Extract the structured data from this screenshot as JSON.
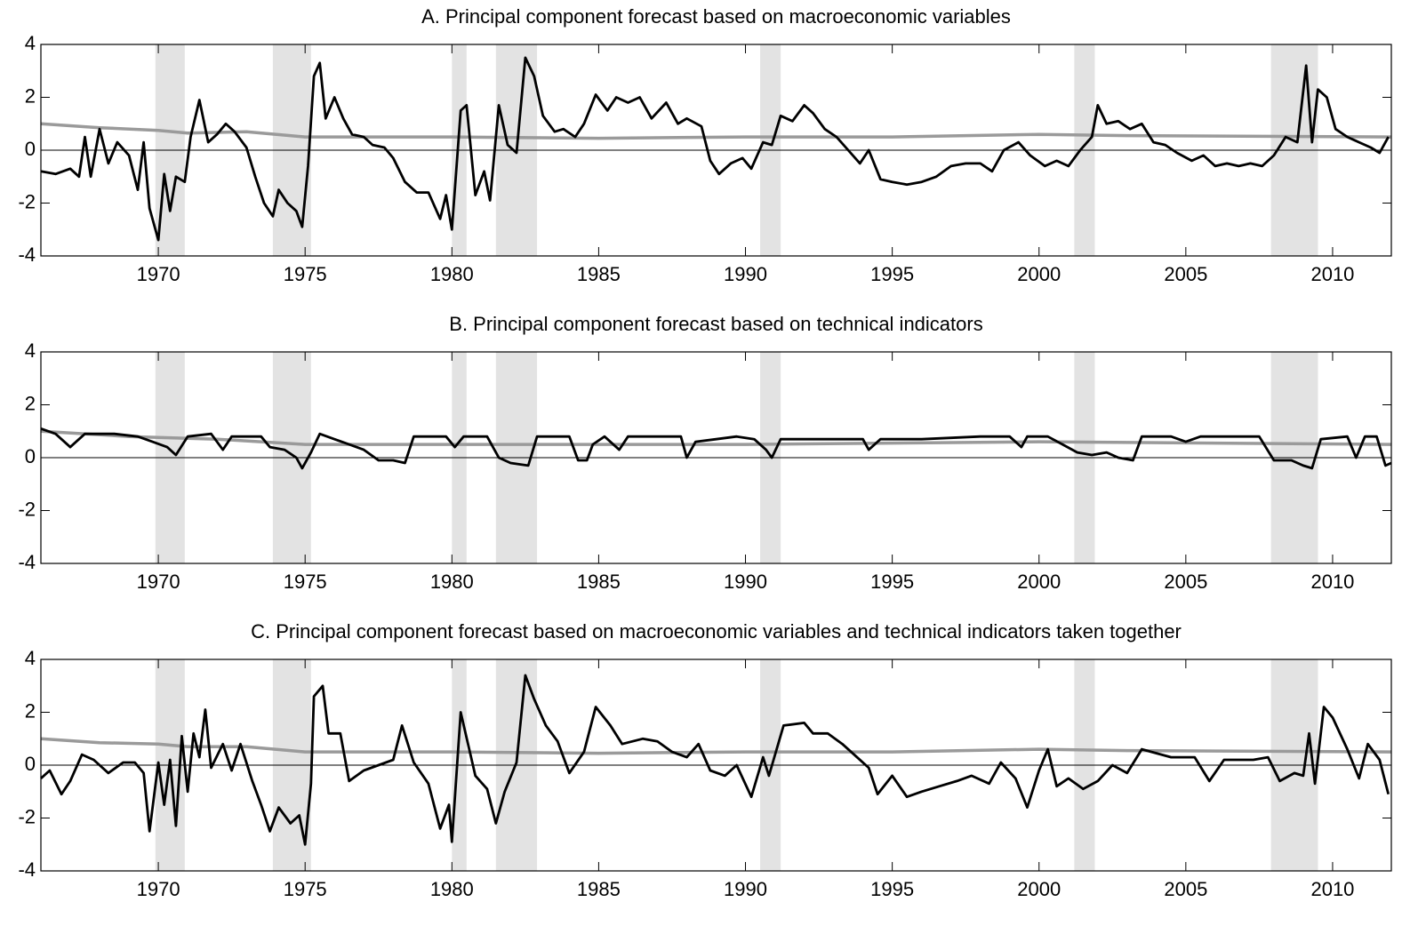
{
  "chart_data": [
    {
      "type": "line",
      "title": "A. Principal component forecast based on macroeconomic variables",
      "xlim": [
        1966,
        2012
      ],
      "ylim": [
        -4,
        4
      ],
      "xticks": [
        1970,
        1975,
        1980,
        1985,
        1990,
        1995,
        2000,
        2005,
        2010
      ],
      "yticks": [
        -4,
        -2,
        0,
        2,
        4
      ],
      "zero_line": true,
      "shade_color": "#e3e3e3",
      "recessions": [
        [
          1969.9,
          1970.9
        ],
        [
          1973.9,
          1975.2
        ],
        [
          1980.0,
          1980.5
        ],
        [
          1981.5,
          1982.9
        ],
        [
          1990.5,
          1991.2
        ],
        [
          2001.2,
          2001.9
        ],
        [
          2007.9,
          2009.5
        ]
      ],
      "series": [
        {
          "color": "#9a9a9a",
          "x": [
            1966,
            1968,
            1970,
            1971,
            1973,
            1975,
            1980,
            1985,
            1990,
            1995,
            2000,
            2003,
            2012
          ],
          "values": [
            1.0,
            0.85,
            0.75,
            0.65,
            0.7,
            0.5,
            0.5,
            0.45,
            0.5,
            0.5,
            0.6,
            0.55,
            0.5
          ]
        },
        {
          "color": "#000000",
          "x": [
            1966,
            1966.5,
            1967,
            1967.3,
            1967.5,
            1967.7,
            1968,
            1968.3,
            1968.6,
            1969,
            1969.3,
            1969.5,
            1969.7,
            1970,
            1970.2,
            1970.4,
            1970.6,
            1970.9,
            1971.1,
            1971.4,
            1971.7,
            1972,
            1972.3,
            1972.6,
            1973,
            1973.3,
            1973.6,
            1973.9,
            1974.1,
            1974.4,
            1974.7,
            1974.9,
            1975.1,
            1975.3,
            1975.5,
            1975.7,
            1976,
            1976.3,
            1976.6,
            1977,
            1977.3,
            1977.7,
            1978,
            1978.4,
            1978.8,
            1979.2,
            1979.6,
            1979.8,
            1980,
            1980.3,
            1980.5,
            1980.8,
            1981.1,
            1981.3,
            1981.6,
            1981.9,
            1982.2,
            1982.5,
            1982.8,
            1983.1,
            1983.5,
            1983.8,
            1984.2,
            1984.5,
            1984.9,
            1985.3,
            1985.6,
            1986,
            1986.4,
            1986.8,
            1987.3,
            1987.7,
            1988,
            1988.5,
            1988.8,
            1989.1,
            1989.5,
            1989.9,
            1990.2,
            1990.6,
            1990.9,
            1991.2,
            1991.6,
            1992,
            1992.3,
            1992.7,
            1993.1,
            1993.5,
            1993.9,
            1994.2,
            1994.6,
            1995,
            1995.5,
            1996,
            1996.5,
            1997,
            1997.5,
            1998,
            1998.4,
            1998.8,
            1999.3,
            1999.7,
            2000.2,
            2000.6,
            2001,
            2001.4,
            2001.8,
            2002,
            2002.3,
            2002.7,
            2003.1,
            2003.5,
            2003.9,
            2004.3,
            2004.7,
            2005.2,
            2005.6,
            2006,
            2006.4,
            2006.8,
            2007.2,
            2007.6,
            2008,
            2008.4,
            2008.8,
            2009.1,
            2009.3,
            2009.5,
            2009.8,
            2010.1,
            2010.5,
            2010.9,
            2011.3,
            2011.6,
            2011.9
          ],
          "values": [
            -0.8,
            -0.9,
            -0.7,
            -1.0,
            0.5,
            -1.0,
            0.8,
            -0.5,
            0.3,
            -0.2,
            -1.5,
            0.3,
            -2.2,
            -3.4,
            -0.9,
            -2.3,
            -1.0,
            -1.2,
            0.5,
            1.9,
            0.3,
            0.6,
            1.0,
            0.7,
            0.1,
            -1.0,
            -2.0,
            -2.5,
            -1.5,
            -2.0,
            -2.3,
            -2.9,
            -0.6,
            2.8,
            3.3,
            1.2,
            2.0,
            1.2,
            0.6,
            0.5,
            0.2,
            0.1,
            -0.3,
            -1.2,
            -1.6,
            -1.6,
            -2.6,
            -1.7,
            -3.0,
            1.5,
            1.7,
            -1.7,
            -0.8,
            -1.9,
            1.7,
            0.2,
            -0.1,
            3.5,
            2.8,
            1.3,
            0.7,
            0.8,
            0.5,
            1.0,
            2.1,
            1.5,
            2.0,
            1.8,
            2.0,
            1.2,
            1.8,
            1.0,
            1.2,
            0.9,
            -0.4,
            -0.9,
            -0.5,
            -0.3,
            -0.7,
            0.3,
            0.2,
            1.3,
            1.1,
            1.7,
            1.4,
            0.8,
            0.5,
            0.0,
            -0.5,
            0.0,
            -1.1,
            -1.2,
            -1.3,
            -1.2,
            -1.0,
            -0.6,
            -0.5,
            -0.5,
            -0.8,
            0.0,
            0.3,
            -0.2,
            -0.6,
            -0.4,
            -0.6,
            0.0,
            0.5,
            1.7,
            1.0,
            1.1,
            0.8,
            1.0,
            0.3,
            0.2,
            -0.1,
            -0.4,
            -0.2,
            -0.6,
            -0.5,
            -0.6,
            -0.5,
            -0.6,
            -0.2,
            0.5,
            0.3,
            3.2,
            0.3,
            2.3,
            2.0,
            0.8,
            0.5,
            0.3,
            0.1,
            -0.1,
            0.5
          ]
        }
      ]
    },
    {
      "type": "line",
      "title": "B. Principal component forecast based on technical indicators",
      "xlim": [
        1966,
        2012
      ],
      "ylim": [
        -4,
        4
      ],
      "xticks": [
        1970,
        1975,
        1980,
        1985,
        1990,
        1995,
        2000,
        2005,
        2010
      ],
      "yticks": [
        -4,
        -2,
        0,
        2,
        4
      ],
      "zero_line": true,
      "shade_color": "#e3e3e3",
      "recessions": [
        [
          1969.9,
          1970.9
        ],
        [
          1973.9,
          1975.2
        ],
        [
          1980.0,
          1980.5
        ],
        [
          1981.5,
          1982.9
        ],
        [
          1990.5,
          1991.2
        ],
        [
          2001.2,
          2001.9
        ],
        [
          2007.9,
          2009.5
        ]
      ],
      "series": [
        {
          "color": "#9a9a9a",
          "x": [
            1966,
            1969,
            1972,
            1975,
            1980,
            1990,
            2000,
            2012
          ],
          "values": [
            1.0,
            0.8,
            0.7,
            0.5,
            0.5,
            0.5,
            0.6,
            0.5
          ]
        },
        {
          "color": "#000000",
          "x": [
            1966,
            1966.5,
            1967,
            1967.5,
            1968.5,
            1969.3,
            1969.8,
            1970.3,
            1970.6,
            1971,
            1971.8,
            1972.2,
            1972.5,
            1973.5,
            1973.8,
            1974.3,
            1974.7,
            1974.9,
            1975.2,
            1975.5,
            1976,
            1976.5,
            1977,
            1977.5,
            1978,
            1978.4,
            1978.7,
            1979.3,
            1979.8,
            1980.1,
            1980.4,
            1981.2,
            1981.6,
            1982,
            1982.6,
            1982.9,
            1983.5,
            1984,
            1984.3,
            1984.6,
            1984.8,
            1985.2,
            1985.7,
            1986,
            1987.2,
            1987.8,
            1988,
            1988.3,
            1989,
            1989.7,
            1990.3,
            1990.7,
            1990.9,
            1991.2,
            1992,
            1993,
            1994,
            1994.2,
            1994.6,
            1996,
            1998,
            1999,
            1999.4,
            1999.6,
            2000.3,
            2000.8,
            2001.3,
            2001.8,
            2002.3,
            2002.7,
            2003.2,
            2003.5,
            2004.5,
            2005,
            2005.5,
            2006.5,
            2007.5,
            2008,
            2008.6,
            2009,
            2009.3,
            2009.6,
            2010.5,
            2010.8,
            2011.1,
            2011.5,
            2011.8,
            2012
          ],
          "values": [
            1.1,
            0.9,
            0.4,
            0.9,
            0.9,
            0.8,
            0.6,
            0.4,
            0.1,
            0.8,
            0.9,
            0.3,
            0.8,
            0.8,
            0.4,
            0.3,
            0.0,
            -0.4,
            0.2,
            0.9,
            0.7,
            0.5,
            0.3,
            -0.1,
            -0.1,
            -0.2,
            0.8,
            0.8,
            0.8,
            0.4,
            0.8,
            0.8,
            0.0,
            -0.2,
            -0.3,
            0.8,
            0.8,
            0.8,
            -0.1,
            -0.1,
            0.5,
            0.8,
            0.3,
            0.8,
            0.8,
            0.8,
            0.0,
            0.6,
            0.7,
            0.8,
            0.7,
            0.3,
            0.0,
            0.7,
            0.7,
            0.7,
            0.7,
            0.3,
            0.7,
            0.7,
            0.8,
            0.8,
            0.4,
            0.8,
            0.8,
            0.5,
            0.2,
            0.1,
            0.2,
            0.0,
            -0.1,
            0.8,
            0.8,
            0.6,
            0.8,
            0.8,
            0.8,
            -0.1,
            -0.1,
            -0.3,
            -0.4,
            0.7,
            0.8,
            0.0,
            0.8,
            0.8,
            -0.3,
            -0.2
          ]
        }
      ]
    },
    {
      "type": "line",
      "title": "C. Principal component forecast based on macroeconomic variables and technical indicators taken together",
      "xlim": [
        1966,
        2012
      ],
      "ylim": [
        -4,
        4
      ],
      "xticks": [
        1970,
        1975,
        1980,
        1985,
        1990,
        1995,
        2000,
        2005,
        2010
      ],
      "yticks": [
        -4,
        -2,
        0,
        2,
        4
      ],
      "zero_line": true,
      "shade_color": "#e3e3e3",
      "recessions": [
        [
          1969.9,
          1970.9
        ],
        [
          1973.9,
          1975.2
        ],
        [
          1980.0,
          1980.5
        ],
        [
          1981.5,
          1982.9
        ],
        [
          1990.5,
          1991.2
        ],
        [
          2001.2,
          2001.9
        ],
        [
          2007.9,
          2009.5
        ]
      ],
      "series": [
        {
          "color": "#9a9a9a",
          "x": [
            1966,
            1968,
            1970,
            1971,
            1973,
            1975,
            1980,
            1985,
            1990,
            1995,
            2000,
            2003,
            2012
          ],
          "values": [
            1.0,
            0.85,
            0.8,
            0.7,
            0.7,
            0.5,
            0.5,
            0.45,
            0.5,
            0.5,
            0.6,
            0.55,
            0.5
          ]
        },
        {
          "color": "#000000",
          "x": [
            1966,
            1966.3,
            1966.7,
            1967,
            1967.4,
            1967.8,
            1968.3,
            1968.8,
            1969.2,
            1969.5,
            1969.7,
            1970,
            1970.2,
            1970.4,
            1970.6,
            1970.8,
            1971,
            1971.2,
            1971.4,
            1971.6,
            1971.8,
            1972.2,
            1972.5,
            1972.8,
            1973.2,
            1973.5,
            1973.8,
            1974.1,
            1974.5,
            1974.8,
            1975,
            1975.2,
            1975.3,
            1975.6,
            1975.8,
            1976.2,
            1976.5,
            1977,
            1977.5,
            1978,
            1978.3,
            1978.7,
            1979.2,
            1979.6,
            1979.9,
            1980,
            1980.3,
            1980.8,
            1981.2,
            1981.5,
            1981.8,
            1982.2,
            1982.5,
            1982.8,
            1983.2,
            1983.6,
            1984,
            1984.5,
            1984.9,
            1985.4,
            1985.8,
            1986.5,
            1987,
            1987.5,
            1988,
            1988.4,
            1988.8,
            1989.3,
            1989.7,
            1990.2,
            1990.6,
            1990.8,
            1991.3,
            1992,
            1992.3,
            1992.8,
            1993.3,
            1993.8,
            1994.2,
            1994.5,
            1995,
            1995.5,
            1996,
            1996.6,
            1997.2,
            1997.7,
            1998.3,
            1998.7,
            1999.2,
            1999.6,
            2000,
            2000.3,
            2000.6,
            2001,
            2001.5,
            2002,
            2002.5,
            2003,
            2003.5,
            2004.5,
            2005.3,
            2005.8,
            2006.3,
            2007.3,
            2007.8,
            2008.2,
            2008.7,
            2009,
            2009.2,
            2009.4,
            2009.7,
            2010,
            2010.5,
            2010.9,
            2011.2,
            2011.6,
            2011.9
          ],
          "values": [
            -0.5,
            -0.2,
            -1.1,
            -0.6,
            0.4,
            0.2,
            -0.3,
            0.1,
            0.1,
            -0.3,
            -2.5,
            0.1,
            -1.5,
            0.2,
            -2.3,
            1.1,
            -1.0,
            1.2,
            0.3,
            2.1,
            -0.1,
            0.8,
            -0.2,
            0.8,
            -0.6,
            -1.5,
            -2.5,
            -1.6,
            -2.2,
            -1.9,
            -3.0,
            -0.7,
            2.6,
            3.0,
            1.2,
            1.2,
            -0.6,
            -0.2,
            0.0,
            0.2,
            1.5,
            0.1,
            -0.7,
            -2.4,
            -1.5,
            -2.9,
            2.0,
            -0.4,
            -0.9,
            -2.2,
            -1.0,
            0.1,
            3.4,
            2.5,
            1.5,
            0.9,
            -0.3,
            0.5,
            2.2,
            1.5,
            0.8,
            1.0,
            0.9,
            0.5,
            0.3,
            0.8,
            -0.2,
            -0.4,
            0.0,
            -1.2,
            0.3,
            -0.4,
            1.5,
            1.6,
            1.2,
            1.2,
            0.8,
            0.3,
            -0.1,
            -1.1,
            -0.4,
            -1.2,
            -1.0,
            -0.8,
            -0.6,
            -0.4,
            -0.7,
            0.1,
            -0.5,
            -1.6,
            -0.2,
            0.6,
            -0.8,
            -0.5,
            -0.9,
            -0.6,
            0.0,
            -0.3,
            0.6,
            0.3,
            0.3,
            -0.6,
            0.2,
            0.2,
            0.3,
            -0.6,
            -0.3,
            -0.4,
            1.2,
            -0.7,
            2.2,
            1.8,
            0.6,
            -0.5,
            0.8,
            0.2,
            -1.1
          ]
        }
      ]
    }
  ]
}
